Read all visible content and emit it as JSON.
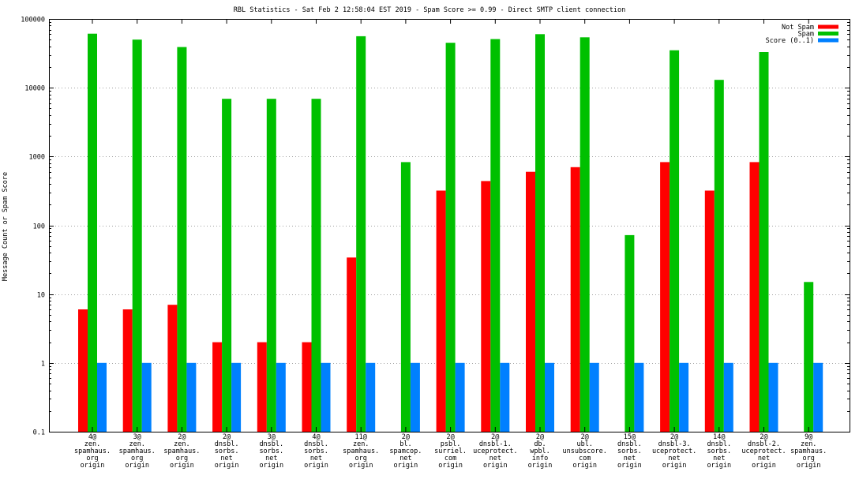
{
  "chart_data": {
    "type": "bar",
    "title": "RBL Statistics - Sat Feb  2 12:58:04 EST 2019 - Spam Score >= 0.99 - Direct SMTP client connection",
    "ylabel": "Message Count or Spam Score",
    "xlabel": "",
    "yscale": "log",
    "ylim": [
      0.1,
      100000
    ],
    "yticks": [
      {
        "value": 0.1,
        "label": "0.1"
      },
      {
        "value": 1,
        "label": "1"
      },
      {
        "value": 10,
        "label": "10"
      },
      {
        "value": 100,
        "label": "100"
      },
      {
        "value": 1000,
        "label": "1000"
      },
      {
        "value": 10000,
        "label": "10000"
      },
      {
        "value": 100000,
        "label": "100000"
      }
    ],
    "grid": true,
    "legend_position": "top-right",
    "categories": [
      [
        "4@",
        "zen.",
        "spamhaus.",
        "org",
        "origin"
      ],
      [
        "3@",
        "zen.",
        "spamhaus.",
        "org",
        "origin"
      ],
      [
        "2@",
        "zen.",
        "spamhaus.",
        "org",
        "origin"
      ],
      [
        "2@",
        "dnsbl.",
        "sorbs.",
        "net",
        "origin"
      ],
      [
        "3@",
        "dnsbl.",
        "sorbs.",
        "net",
        "origin"
      ],
      [
        "4@",
        "dnsbl.",
        "sorbs.",
        "net",
        "origin"
      ],
      [
        "11@",
        "zen.",
        "spamhaus.",
        "org",
        "origin"
      ],
      [
        "2@",
        "bl.",
        "spamcop.",
        "net",
        "origin"
      ],
      [
        "2@",
        "psbl.",
        "surriel.",
        "com",
        "origin"
      ],
      [
        "2@",
        "dnsbl-1.",
        "uceprotect.",
        "net",
        "origin"
      ],
      [
        "2@",
        "db.",
        "wpbl.",
        "info",
        "origin"
      ],
      [
        "2@",
        "ubl.",
        "unsubscore.",
        "com",
        "origin"
      ],
      [
        "15@",
        "dnsbl.",
        "sorbs.",
        "net",
        "origin"
      ],
      [
        "2@",
        "dnsbl-3.",
        "uceprotect.",
        "net",
        "origin"
      ],
      [
        "14@",
        "dnsbl.",
        "sorbs.",
        "net",
        "origin"
      ],
      [
        "2@",
        "dnsbl-2.",
        "uceprotect.",
        "net",
        "origin"
      ],
      [
        "9@",
        "zen.",
        "spamhaus.",
        "org",
        "origin"
      ]
    ],
    "series": [
      {
        "name": "Not Spam",
        "color": "#ff0000",
        "values": [
          6,
          6,
          7,
          2,
          2,
          2,
          34,
          null,
          320,
          440,
          600,
          700,
          null,
          830,
          320,
          830,
          null
        ]
      },
      {
        "name": "Spam",
        "color": "#00c000",
        "values": [
          61000,
          50000,
          39000,
          6900,
          6900,
          6900,
          56000,
          830,
          45000,
          51000,
          60000,
          54000,
          72,
          35000,
          13000,
          33000,
          15
        ]
      },
      {
        "name": "Score (0..1)",
        "color": "#0080ff",
        "values": [
          1,
          1,
          1,
          1,
          1,
          1,
          1,
          1,
          1,
          1,
          1,
          1,
          1,
          1,
          1,
          1,
          1
        ]
      }
    ]
  }
}
